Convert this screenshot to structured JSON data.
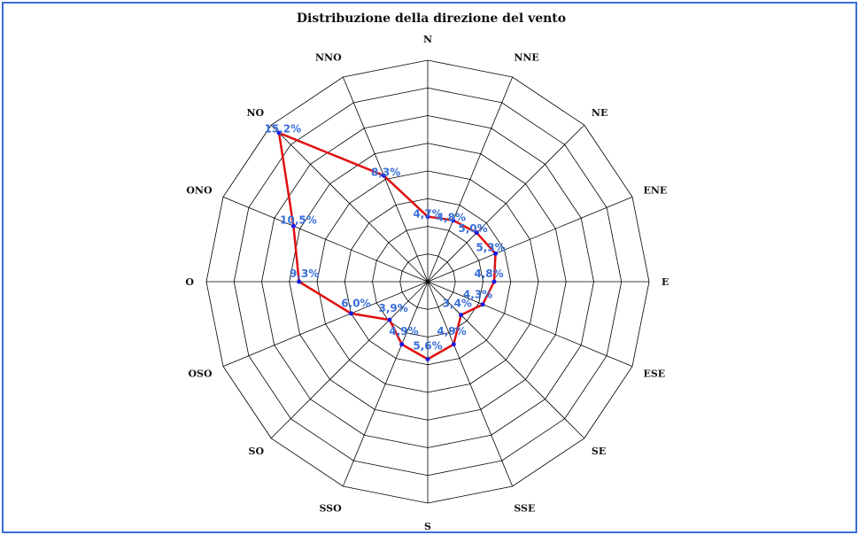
{
  "chart_data": {
    "type": "radar",
    "title": "Distribuzione della direzione del vento",
    "categories": [
      "N",
      "NNE",
      "NE",
      "ENE",
      "E",
      "ESE",
      "SE",
      "SSE",
      "S",
      "SSO",
      "SO",
      "OSO",
      "O",
      "ONO",
      "NO",
      "NNO"
    ],
    "series": [
      {
        "values": [
          4.7,
          4.8,
          5.0,
          5.3,
          4.8,
          4.3,
          3.4,
          4.9,
          5.6,
          4.9,
          3.9,
          6.0,
          9.3,
          10.5,
          15.2,
          8.3
        ],
        "labels": [
          "4,7%",
          "4,8%",
          "5,0%",
          "5,3%",
          "4,8%",
          "4,3%",
          "3,4%",
          "4,9%",
          "5,6%",
          "4,9%",
          "3,9%",
          "6,0%",
          "9,3%",
          "10,5%",
          "15,2%",
          "8,3%"
        ]
      }
    ],
    "rmax": 16,
    "rings": 8,
    "grid": true,
    "legend": "none"
  },
  "colors": {
    "border": "#3a6fd8",
    "line": "#e01010",
    "marker": "#1a1ae0",
    "value_label": "#3a6fd8",
    "grid": "#000000"
  }
}
